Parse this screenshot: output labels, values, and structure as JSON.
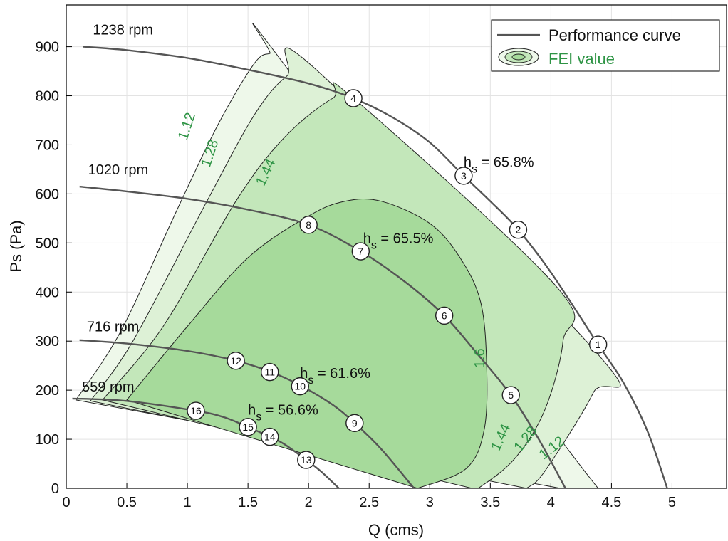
{
  "chart_data": {
    "type": "line",
    "title": "",
    "xlabel": "Q (cms)",
    "ylabel": "Ps (Pa)",
    "xlim": [
      0,
      5.45
    ],
    "ylim": [
      0,
      985
    ],
    "xticks": [
      0,
      0.5,
      1,
      1.5,
      2,
      2.5,
      3,
      3.5,
      4,
      4.5,
      5
    ],
    "xtick_labels": [
      "0",
      "0.5",
      "1",
      "1.5",
      "2",
      "2.5",
      "3",
      "3.5",
      "4",
      "4.5",
      "5"
    ],
    "yticks": [
      0,
      100,
      200,
      300,
      400,
      500,
      600,
      700,
      800,
      900
    ],
    "ytick_labels": [
      "0",
      "100",
      "200",
      "300",
      "400",
      "500",
      "600",
      "700",
      "800",
      "900"
    ],
    "grid": true,
    "legend_placement": "top-right",
    "legend": {
      "curve_label": "Performance curve",
      "fei_label": "FEI value",
      "fei_color": "#2e9445"
    },
    "colors": {
      "curve": "#555555",
      "contour_line": "#222222",
      "contour_label": "#2e9445",
      "fill_1_12": "#eef8ea",
      "fill_1_28": "#ddf1d6",
      "fill_1_44": "#c3e7ba",
      "fill_1_6": "#a6da9b"
    },
    "series": [
      {
        "name": "1238 rpm",
        "label": "1238 rpm",
        "x": [
          0.14,
          0.5,
          1.0,
          1.5,
          2.0,
          2.37,
          2.7,
          3.0,
          3.28,
          3.5,
          3.73,
          4.0,
          4.39,
          4.6,
          4.8,
          4.96
        ],
        "y": [
          900,
          893,
          877,
          853,
          825,
          795,
          755,
          705,
          637,
          585,
          527,
          440,
          293,
          215,
          115,
          0
        ]
      },
      {
        "name": "1020 rpm",
        "label": "1020 rpm",
        "x": [
          0.11,
          0.5,
          1.0,
          1.5,
          2.0,
          2.43,
          2.8,
          3.12,
          3.4,
          3.67,
          3.9,
          4.12
        ],
        "y": [
          615,
          605,
          590,
          568,
          537,
          483,
          420,
          352,
          272,
          190,
          100,
          0
        ]
      },
      {
        "name": "716 rpm",
        "label": "716 rpm",
        "x": [
          0.11,
          0.5,
          1.0,
          1.4,
          1.68,
          1.93,
          2.2,
          2.38,
          2.6,
          2.87
        ],
        "y": [
          302,
          295,
          280,
          260,
          238,
          210,
          170,
          133,
          80,
          0
        ]
      },
      {
        "name": "559 rpm",
        "label": "559 rpm",
        "x": [
          0.05,
          0.5,
          1.07,
          1.3,
          1.5,
          1.68,
          1.8,
          1.98,
          2.1,
          2.25
        ],
        "y": [
          183,
          178,
          158,
          145,
          125,
          105,
          90,
          58,
          35,
          0
        ]
      }
    ],
    "fei_contours": [
      {
        "level": "1.12",
        "x": [
          0.08,
          0.45,
          0.9,
          1.25,
          1.55,
          1.68,
          1.75,
          4.39,
          4.62,
          4.08
        ],
        "y": [
          180,
          320,
          560,
          740,
          865,
          886,
          880,
          0,
          0,
          0
        ],
        "closed_outer": true,
        "labels": [
          {
            "x": 1.03,
            "y": 735,
            "angle": -72,
            "text": "1.12"
          },
          {
            "x": 4.03,
            "y": 75,
            "angle": -38,
            "text": "1.12"
          }
        ]
      },
      {
        "level": "1.28",
        "x": [
          0.2,
          0.55,
          1.15,
          1.55,
          1.82,
          2.05,
          4.4,
          4.35,
          3.95,
          3.8
        ],
        "y": [
          178,
          300,
          580,
          760,
          840,
          856,
          270,
          195,
          35,
          0
        ],
        "labels": [
          {
            "x": 1.22,
            "y": 680,
            "angle": -72,
            "text": "1.28"
          },
          {
            "x": 3.82,
            "y": 95,
            "angle": -52,
            "text": "1.28"
          }
        ]
      },
      {
        "level": "1.44",
        "x": [
          0.3,
          0.8,
          1.4,
          1.8,
          2.2,
          2.37,
          4.05,
          4.1,
          3.95,
          3.7,
          3.4,
          3.35
        ],
        "y": [
          180,
          330,
          585,
          715,
          795,
          795,
          410,
          300,
          160,
          60,
          0,
          0
        ],
        "labels": [
          {
            "x": 1.68,
            "y": 640,
            "angle": -65,
            "text": "1.44"
          },
          {
            "x": 3.62,
            "y": 100,
            "angle": -65,
            "text": "1.44"
          }
        ]
      },
      {
        "level": "1.6",
        "x": [
          0.5,
          1.0,
          1.5,
          2.0,
          2.3,
          2.6,
          3.0,
          3.25,
          3.42,
          3.47,
          3.45,
          3.3,
          2.9
        ],
        "y": [
          180,
          330,
          470,
          555,
          585,
          585,
          540,
          470,
          380,
          250,
          120,
          40,
          0
        ],
        "labels": [
          {
            "x": 3.45,
            "y": 265,
            "angle": -90,
            "text": "1.6"
          }
        ]
      }
    ],
    "operating_points": [
      {
        "id": "1",
        "x": 4.39,
        "y": 293
      },
      {
        "id": "2",
        "x": 3.73,
        "y": 527
      },
      {
        "id": "3",
        "x": 3.28,
        "y": 637
      },
      {
        "id": "4",
        "x": 2.37,
        "y": 795
      },
      {
        "id": "5",
        "x": 3.67,
        "y": 190
      },
      {
        "id": "6",
        "x": 3.12,
        "y": 352
      },
      {
        "id": "7",
        "x": 2.43,
        "y": 483
      },
      {
        "id": "8",
        "x": 2.0,
        "y": 537
      },
      {
        "id": "9",
        "x": 2.38,
        "y": 133
      },
      {
        "id": "10",
        "x": 1.93,
        "y": 208
      },
      {
        "id": "11",
        "x": 1.68,
        "y": 237
      },
      {
        "id": "12",
        "x": 1.4,
        "y": 260
      },
      {
        "id": "13",
        "x": 1.98,
        "y": 58
      },
      {
        "id": "14",
        "x": 1.68,
        "y": 105
      },
      {
        "id": "15",
        "x": 1.5,
        "y": 125
      },
      {
        "id": "16",
        "x": 1.07,
        "y": 158
      }
    ],
    "efficiency_annotations": [
      {
        "text_main": "h",
        "text_sub": "s",
        "text_rest": " = 65.8%",
        "x": 3.28,
        "y": 655
      },
      {
        "text_main": "h",
        "text_sub": "s",
        "text_rest": " = 65.5%",
        "x": 2.45,
        "y": 500
      },
      {
        "text_main": "h",
        "text_sub": "s",
        "text_rest": " = 61.6%",
        "x": 1.93,
        "y": 225
      },
      {
        "text_main": "h",
        "text_sub": "s",
        "text_rest": " = 56.6%",
        "x": 1.5,
        "y": 150
      }
    ],
    "curve_label_positions": [
      {
        "text": "1238 rpm",
        "x": 0.22,
        "y": 925
      },
      {
        "text": "1020 rpm",
        "x": 0.18,
        "y": 640
      },
      {
        "text": "716 rpm",
        "x": 0.17,
        "y": 320
      },
      {
        "text": "559 rpm",
        "x": 0.13,
        "y": 197
      }
    ]
  }
}
